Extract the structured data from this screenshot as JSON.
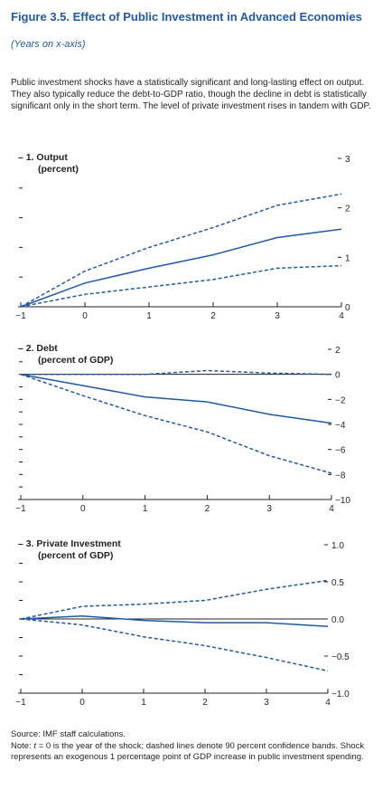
{
  "figure": {
    "title": "Figure 3.5.  Effect of Public Investment in Advanced Economies",
    "subtitle": "(Years on x-axis)",
    "intro": "Public investment shocks have a statistically significant and long-lasting effect on output. They also typically reduce the debt-to-GDP ratio, though the decline in debt is statistically significant only in the short term. The level of private investment rises in tandem with GDP."
  },
  "footer": {
    "source": "Source: IMF staff calculations.",
    "note_prefix": "Note: ",
    "note_var": "t",
    "note_text": " = 0 is the year of the shock; dashed lines denote 90 percent confidence bands. Shock represents an exogenous 1 percentage point of GDP increase in public investment spending."
  },
  "style": {
    "line_color": "#1f5aa6",
    "axis_color": "#231f20"
  },
  "chart_data": [
    {
      "type": "line",
      "title": "1. Output",
      "subtitle": "(percent)",
      "x": [
        -1,
        0,
        1,
        2,
        3,
        4
      ],
      "xlim": [
        -1,
        4
      ],
      "ylim": [
        0,
        3
      ],
      "yticks": [
        0,
        1,
        2,
        3
      ],
      "ytick_labels": [
        "0",
        "1",
        "2",
        "3"
      ],
      "left_ticks": 5,
      "series": [
        {
          "style": "solid",
          "values": [
            0,
            0.48,
            0.78,
            1.05,
            1.4,
            1.57
          ]
        },
        {
          "style": "dashed",
          "values": [
            0,
            0.72,
            1.2,
            1.6,
            2.05,
            2.28
          ]
        },
        {
          "style": "dashed",
          "values": [
            0,
            0.25,
            0.4,
            0.55,
            0.78,
            0.83
          ]
        }
      ]
    },
    {
      "type": "line",
      "title": "2. Debt",
      "subtitle": "(percent of GDP)",
      "x": [
        -1,
        0,
        1,
        2,
        3,
        4
      ],
      "xlim": [
        -1,
        4
      ],
      "ylim": [
        -10,
        2
      ],
      "yticks": [
        -10,
        -8,
        -6,
        -4,
        -2,
        0,
        2
      ],
      "ytick_labels": [
        "−10",
        "−8",
        "−6",
        "−4",
        "−2",
        "0",
        "2"
      ],
      "left_ticks": 12,
      "series": [
        {
          "style": "solid",
          "values": [
            0,
            -0.9,
            -1.8,
            -2.2,
            -3.2,
            -3.9
          ]
        },
        {
          "style": "dashed",
          "values": [
            0,
            0.0,
            0.0,
            0.3,
            0.1,
            0.0
          ]
        },
        {
          "style": "dashed",
          "values": [
            0,
            -1.7,
            -3.3,
            -4.6,
            -6.5,
            -7.9
          ]
        }
      ]
    },
    {
      "type": "line",
      "title": "3. Private Investment",
      "subtitle": "(percent of GDP)",
      "x": [
        -1,
        0,
        1,
        2,
        3,
        4
      ],
      "xlim": [
        -1,
        4
      ],
      "ylim": [
        -1.0,
        1.0
      ],
      "yticks": [
        -1.0,
        -0.5,
        0.0,
        0.5,
        1.0
      ],
      "ytick_labels": [
        "−1.0",
        "−0.5",
        "0.0",
        "0.5",
        "1.0"
      ],
      "left_ticks": 8,
      "series": [
        {
          "style": "solid",
          "values": [
            0,
            0.04,
            -0.02,
            -0.05,
            -0.05,
            -0.1
          ]
        },
        {
          "style": "dashed",
          "values": [
            0,
            0.17,
            0.2,
            0.25,
            0.4,
            0.52
          ]
        },
        {
          "style": "dashed",
          "values": [
            0,
            -0.08,
            -0.24,
            -0.36,
            -0.52,
            -0.7
          ]
        }
      ]
    }
  ]
}
